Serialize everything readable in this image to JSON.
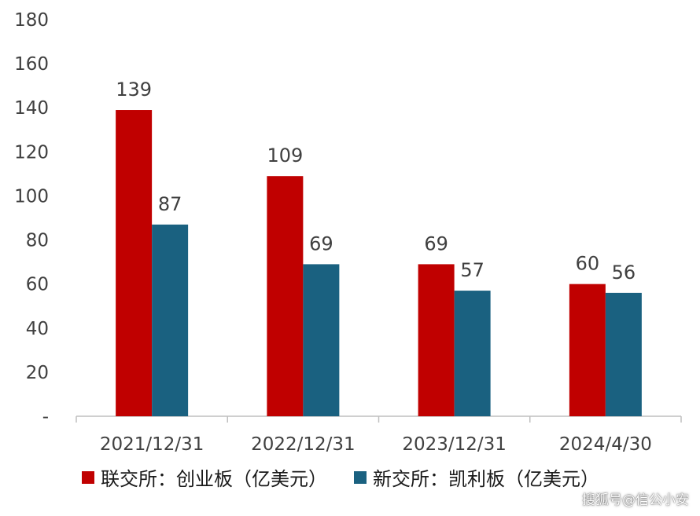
{
  "chart_data": {
    "type": "bar",
    "title": "",
    "xlabel": "",
    "ylabel": "",
    "ylim": [
      0,
      180
    ],
    "y_ticks": [
      0,
      20,
      40,
      60,
      80,
      100,
      120,
      140,
      160,
      180
    ],
    "y_tick_labels": [
      "-",
      "20",
      "40",
      "60",
      "80",
      "100",
      "120",
      "140",
      "160",
      "180"
    ],
    "categories": [
      "2021/12/31",
      "2022/12/31",
      "2023/12/31",
      "2024/4/30"
    ],
    "series": [
      {
        "name": "联交所：创业板（亿美元）",
        "color": "#c00000",
        "values": [
          139,
          109,
          69,
          60
        ]
      },
      {
        "name": "新交所：凯利板（亿美元）",
        "color": "#1a6180",
        "values": [
          87,
          69,
          57,
          56
        ]
      }
    ],
    "grid": false,
    "legend_position": "bottom"
  },
  "watermark": "搜狐号@信公小安"
}
